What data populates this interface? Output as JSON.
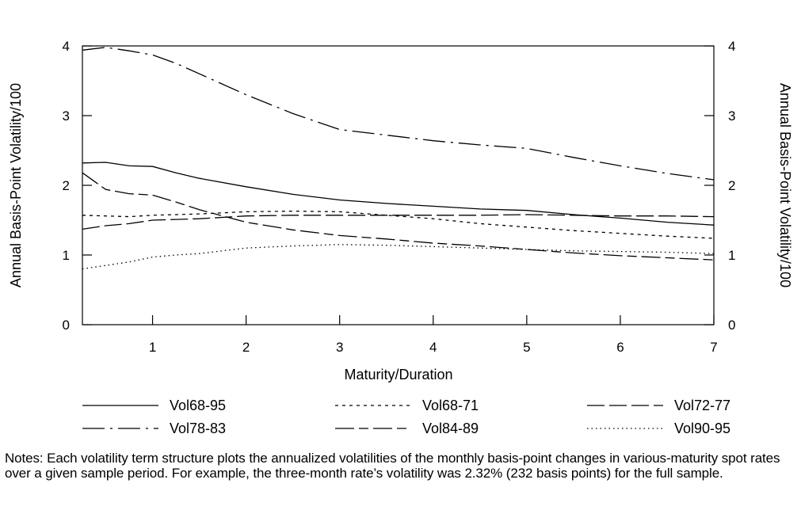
{
  "chart_data": {
    "type": "line",
    "title": "",
    "xlabel": "Maturity/Duration",
    "ylabel_left": "Annual Basis-Point Volatility/100",
    "ylabel_right": "Annual Basis-Point Volatility/100",
    "xlim": [
      0.25,
      7
    ],
    "ylim": [
      0,
      4
    ],
    "x_ticks": [
      1,
      2,
      3,
      4,
      5,
      6,
      7
    ],
    "y_ticks": [
      0,
      1,
      2,
      3,
      4
    ],
    "grid": false,
    "legend_position": "bottom",
    "series": [
      {
        "name": "Vol68-95",
        "dash": "solid",
        "x": [
          0.25,
          0.5,
          0.75,
          1,
          1.25,
          1.5,
          2,
          2.5,
          3,
          3.5,
          4,
          4.5,
          5,
          5.5,
          6,
          6.5,
          7
        ],
        "y": [
          2.32,
          2.33,
          2.28,
          2.27,
          2.18,
          2.1,
          1.98,
          1.87,
          1.79,
          1.74,
          1.7,
          1.66,
          1.64,
          1.58,
          1.53,
          1.47,
          1.43
        ]
      },
      {
        "name": "Vol68-71",
        "dash": "dotted-dash",
        "x": [
          0.25,
          0.5,
          0.75,
          1,
          1.25,
          1.5,
          2,
          2.5,
          3,
          3.5,
          4,
          4.5,
          5,
          5.5,
          6,
          6.5,
          7
        ],
        "y": [
          1.57,
          1.56,
          1.55,
          1.57,
          1.58,
          1.59,
          1.62,
          1.63,
          1.62,
          1.57,
          1.52,
          1.45,
          1.4,
          1.35,
          1.31,
          1.27,
          1.24
        ]
      },
      {
        "name": "Vol72-77",
        "dash": "long-dash",
        "x": [
          0.25,
          0.5,
          0.75,
          1,
          1.25,
          1.5,
          2,
          2.5,
          3,
          3.5,
          4,
          4.5,
          5,
          5.5,
          6,
          6.5,
          7
        ],
        "y": [
          1.37,
          1.42,
          1.45,
          1.5,
          1.51,
          1.52,
          1.56,
          1.57,
          1.57,
          1.57,
          1.57,
          1.57,
          1.58,
          1.57,
          1.56,
          1.56,
          1.55
        ]
      },
      {
        "name": "Vol78-83",
        "dash": "dash-dot",
        "x": [
          0.25,
          0.5,
          0.75,
          1,
          1.25,
          1.5,
          2,
          2.5,
          3,
          3.5,
          4,
          4.5,
          5,
          5.5,
          6,
          6.5,
          7
        ],
        "y": [
          3.94,
          3.98,
          3.93,
          3.87,
          3.75,
          3.6,
          3.3,
          3.03,
          2.8,
          2.72,
          2.64,
          2.58,
          2.53,
          2.4,
          2.28,
          2.17,
          2.08
        ]
      },
      {
        "name": "Vol84-89",
        "dash": "long-short",
        "x": [
          0.25,
          0.5,
          0.75,
          1,
          1.25,
          1.5,
          2,
          2.5,
          3,
          3.5,
          4,
          4.5,
          5,
          5.5,
          6,
          6.5,
          7
        ],
        "y": [
          2.18,
          1.94,
          1.88,
          1.86,
          1.76,
          1.65,
          1.47,
          1.36,
          1.28,
          1.23,
          1.17,
          1.13,
          1.08,
          1.03,
          0.99,
          0.96,
          0.93
        ]
      },
      {
        "name": "Vol90-95",
        "dash": "dotted",
        "x": [
          0.25,
          0.5,
          0.75,
          1,
          1.25,
          1.5,
          2,
          2.5,
          3,
          3.5,
          4,
          4.5,
          5,
          5.5,
          6,
          6.5,
          7
        ],
        "y": [
          0.8,
          0.85,
          0.9,
          0.97,
          1.0,
          1.02,
          1.1,
          1.13,
          1.15,
          1.14,
          1.12,
          1.1,
          1.08,
          1.06,
          1.05,
          1.04,
          1.02
        ]
      }
    ]
  },
  "notes": "Notes: Each volatility term structure plots the annualized volatilities of the monthly basis-point changes in various-maturity spot rates over a given sample period. For example, the three-month rate’s volatility was 2.32% (232 basis points) for the full sample."
}
